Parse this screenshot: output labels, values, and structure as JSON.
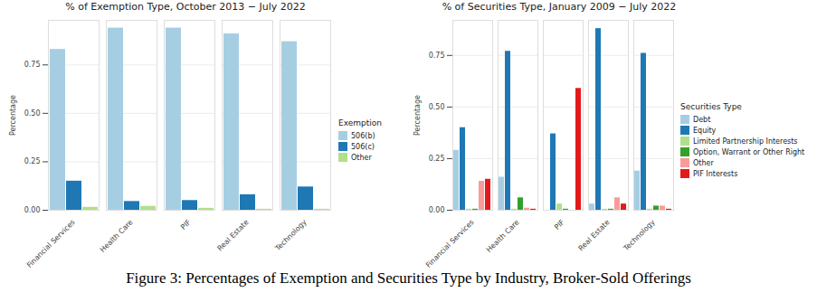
{
  "caption": "Figure 3: Percentages of Exemption and Securities Type by Industry, Broker-Sold Offerings",
  "chart_data": [
    {
      "type": "bar",
      "title": "% of Exemption Type, October 2013 − July 2022",
      "y_label": "Percentage",
      "legend_title": "Exemption",
      "legend": "right",
      "grid": true,
      "categories": [
        "Financial Services",
        "Health Care",
        "PIF",
        "Real Estate",
        "Technology"
      ],
      "series": [
        {
          "name": "506(b)",
          "color": "#a6cee3",
          "values": [
            0.83,
            0.94,
            0.94,
            0.91,
            0.87
          ]
        },
        {
          "name": "506(c)",
          "color": "#1f78b4",
          "values": [
            0.15,
            0.045,
            0.05,
            0.08,
            0.12
          ]
        },
        {
          "name": "Other",
          "color": "#b2df8a",
          "values": [
            0.015,
            0.02,
            0.01,
            0.005,
            0.005
          ]
        }
      ],
      "ylim": [
        0,
        0.98
      ],
      "yticks": [
        {
          "value": 0,
          "label": "0.00"
        },
        {
          "value": 0.25,
          "label": "0.25"
        },
        {
          "value": 0.5,
          "label": "0.50"
        },
        {
          "value": 0.75,
          "label": "0.75"
        }
      ]
    },
    {
      "type": "bar",
      "title": "% of Securities Type, January 2009 − July 2022",
      "y_label": "Percentage",
      "legend_title": "Securities Type",
      "legend": "right",
      "grid": true,
      "categories": [
        "Financial Services",
        "Health Care",
        "PIF",
        "Real Estate",
        "Technology"
      ],
      "series": [
        {
          "name": "Debt",
          "color": "#a6cee3",
          "values": [
            0.29,
            0.16,
            0,
            0.03,
            0.19
          ]
        },
        {
          "name": "Equity",
          "color": "#1f78b4",
          "values": [
            0.4,
            0.77,
            0.37,
            0.88,
            0.76
          ]
        },
        {
          "name": "Limited Partnership Interests",
          "color": "#b2df8a",
          "values": [
            0.005,
            0.005,
            0.03,
            0.005,
            0.005
          ]
        },
        {
          "name": "Option, Warrant or Other Right",
          "color": "#33a02c",
          "values": [
            0.005,
            0.06,
            0.005,
            0.005,
            0.02
          ]
        },
        {
          "name": "Other",
          "color": "#fb9a99",
          "values": [
            0.14,
            0.01,
            0,
            0.06,
            0.02
          ]
        },
        {
          "name": "PIF Interests",
          "color": "#e31a1c",
          "values": [
            0.15,
            0.005,
            0.59,
            0.03,
            0.005
          ]
        }
      ],
      "ylim": [
        0,
        0.92
      ],
      "yticks": [
        {
          "value": 0,
          "label": "0.00"
        },
        {
          "value": 0.25,
          "label": "0.25"
        },
        {
          "value": 0.5,
          "label": "0.50"
        },
        {
          "value": 0.75,
          "label": "0.75"
        }
      ]
    }
  ]
}
